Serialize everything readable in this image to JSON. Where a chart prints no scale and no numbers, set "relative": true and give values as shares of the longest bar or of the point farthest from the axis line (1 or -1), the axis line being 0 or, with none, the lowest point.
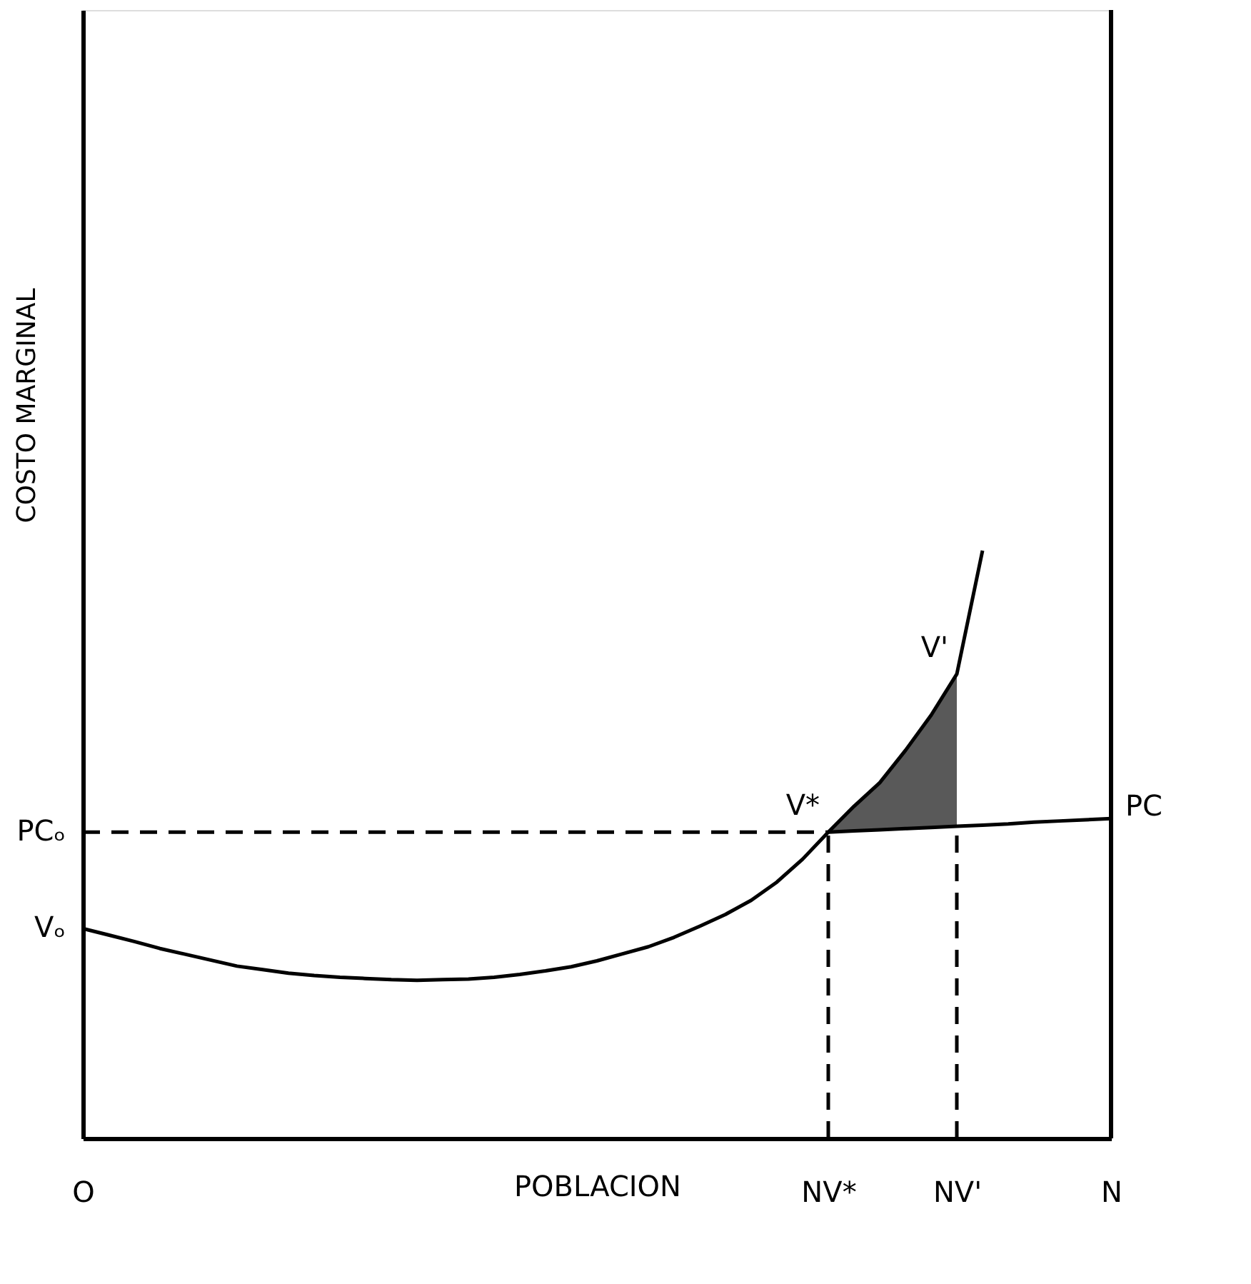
{
  "chart_data": {
    "type": "line",
    "relative": true,
    "xlabel": "POBLACION",
    "ylabel": "COSTO MARGINAL",
    "grid": false,
    "categories": [
      "O",
      null,
      null,
      null,
      null,
      null,
      null,
      null,
      null,
      null,
      null,
      null,
      null,
      null,
      null,
      null,
      null,
      null,
      null,
      null,
      null,
      null,
      null,
      null,
      null,
      null,
      null,
      null,
      null,
      "NV*",
      null,
      null,
      null,
      null,
      "NV'",
      null,
      null,
      null,
      null,
      null,
      "N"
    ],
    "series": [
      {
        "color": "#000000",
        "line_style": "solid",
        "values": [
          0.357,
          0.346,
          0.335,
          0.323,
          0.313,
          0.303,
          0.293,
          0.287,
          0.281,
          0.277,
          0.274,
          0.272,
          0.27,
          0.269,
          0.27,
          0.271,
          0.274,
          0.279,
          0.285,
          0.292,
          0.302,
          0.314,
          0.326,
          0.342,
          0.361,
          0.381,
          0.405,
          0.436,
          0.475,
          0.521,
          0.565,
          0.605,
          0.66,
          0.72,
          0.79,
          1.0,
          null,
          null,
          null,
          null,
          null
        ]
      },
      {
        "color": "#000000",
        "line_style": "dashed",
        "values": [
          0.521,
          0.521,
          0.521,
          0.521,
          0.521,
          0.521,
          0.521,
          0.521,
          0.521,
          0.521,
          0.521,
          0.521,
          0.521,
          0.521,
          0.521,
          0.521,
          0.521,
          0.521,
          0.521,
          0.521,
          0.521,
          0.521,
          0.521,
          0.521,
          0.521,
          0.521,
          0.521,
          0.521,
          0.521,
          0.521,
          null,
          null,
          null,
          null,
          null,
          null,
          null,
          null,
          null,
          null,
          null
        ]
      },
      {
        "color": "#000000",
        "line_style": "solid",
        "values": [
          null,
          null,
          null,
          null,
          null,
          null,
          null,
          null,
          null,
          null,
          null,
          null,
          null,
          null,
          null,
          null,
          null,
          null,
          null,
          null,
          null,
          null,
          null,
          null,
          null,
          null,
          null,
          null,
          null,
          0.521,
          0.523,
          0.525,
          0.527,
          0.529,
          0.531,
          0.533,
          0.535,
          0.538,
          0.54,
          0.542,
          0.544
        ],
        "lower": [
          null,
          null,
          null,
          null,
          null,
          null,
          null,
          null,
          null,
          null,
          null,
          null,
          null,
          null,
          null,
          null,
          null,
          null,
          null,
          null,
          null,
          null,
          null,
          null,
          null,
          null,
          null,
          null,
          null,
          0.521,
          0.523,
          0.525,
          0.527,
          0.529,
          0.531,
          null,
          null,
          null,
          null,
          null,
          null
        ],
        "upper": [
          null,
          null,
          null,
          null,
          null,
          null,
          null,
          null,
          null,
          null,
          null,
          null,
          null,
          null,
          null,
          null,
          null,
          null,
          null,
          null,
          null,
          null,
          null,
          null,
          null,
          null,
          null,
          null,
          null,
          0.521,
          0.565,
          0.605,
          0.66,
          0.72,
          0.79,
          null,
          null,
          null,
          null,
          null,
          null
        ]
      }
    ],
    "ref_lines": [
      {
        "axis": "x",
        "value": "NV*",
        "color": "#000000",
        "line_style": "dashed"
      },
      {
        "axis": "x",
        "value": "NV'",
        "color": "#000000",
        "line_style": "dashed"
      },
      {
        "axis": "x",
        "value": "N",
        "color": "#000000",
        "line_style": "solid"
      }
    ],
    "annotations": [
      {
        "text": "PCₒ",
        "x": "O",
        "y": 0.521
      },
      {
        "text": "Vₒ",
        "x": "O",
        "y": 0.357
      },
      {
        "text": "V*",
        "x": "NV*",
        "y": 0.521
      },
      {
        "text": "V'",
        "x": "NV'",
        "y": 0.79
      },
      {
        "text": "PC",
        "x": "N",
        "y": 0.544
      }
    ]
  }
}
